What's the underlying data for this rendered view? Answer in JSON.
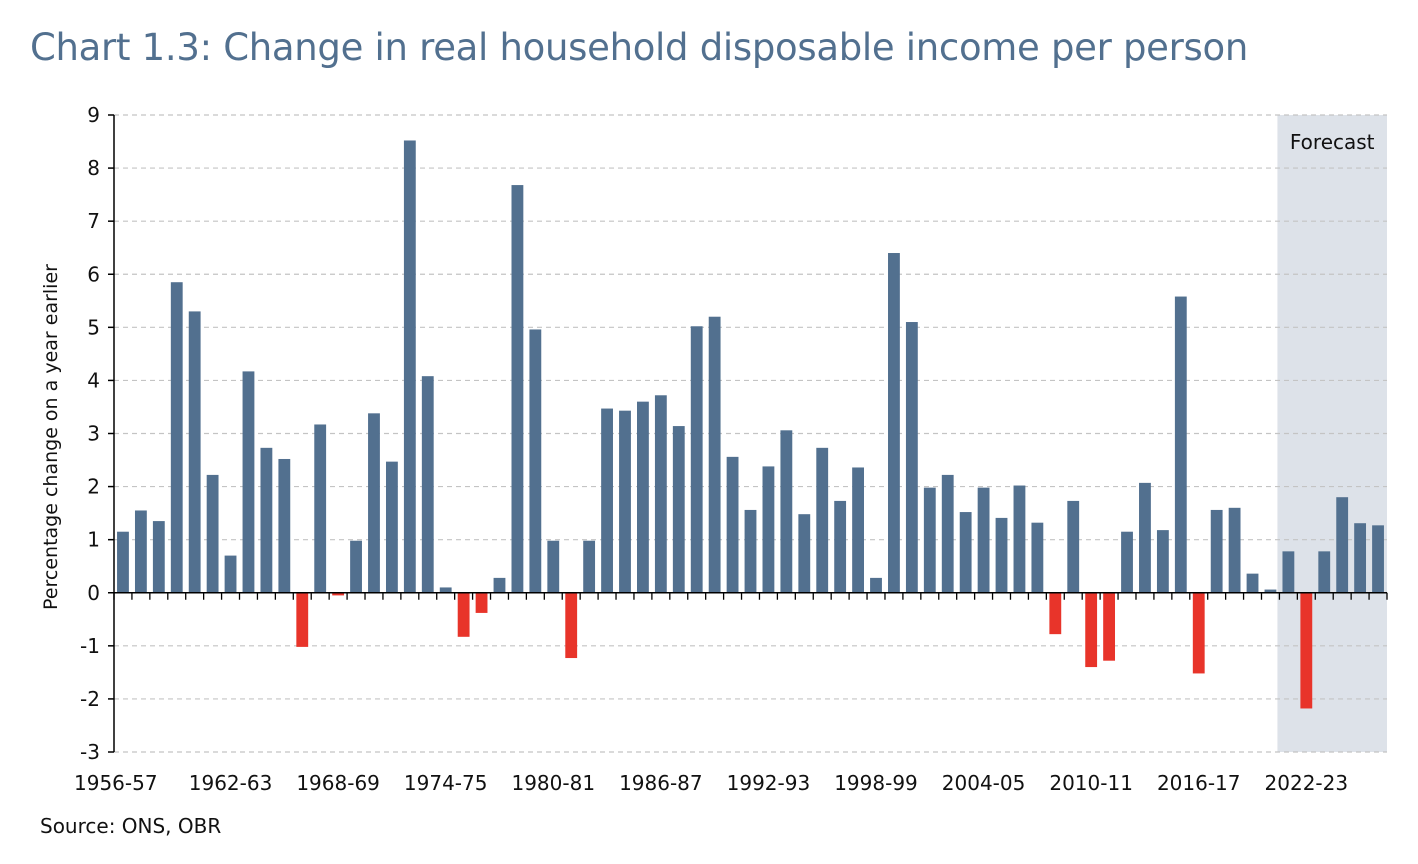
{
  "chart_data": {
    "type": "bar",
    "title": "Chart 1.3: Change in real household disposable income per person",
    "ylabel": "Percentage change on a year earlier",
    "xlabel": "",
    "ylim": [
      -3,
      9
    ],
    "yticks": [
      -3,
      -2,
      -1,
      0,
      1,
      2,
      3,
      4,
      5,
      6,
      7,
      8,
      9
    ],
    "grid": "horizontal dashed",
    "x_tick_labels": [
      "1956-57",
      "1962-63",
      "1968-69",
      "1974-75",
      "1980-81",
      "1986-87",
      "1992-93",
      "1998-99",
      "2004-05",
      "2010-11",
      "2016-17",
      "2022-23"
    ],
    "first_year": 1956,
    "forecast_label": "Forecast",
    "forecast_from": "2021-22",
    "colors": {
      "positive": "#52708f",
      "negative": "#e8342a",
      "forecast_shade": "#dde2e9",
      "title": "#52708f"
    },
    "values": [
      1.15,
      1.55,
      1.35,
      5.85,
      5.3,
      2.22,
      0.7,
      4.17,
      2.73,
      2.52,
      -1.02,
      3.17,
      -0.05,
      0.98,
      3.38,
      2.47,
      8.52,
      4.08,
      0.1,
      -0.83,
      -0.38,
      0.28,
      7.68,
      4.96,
      0.98,
      -1.23,
      0.98,
      3.47,
      3.43,
      3.6,
      3.72,
      3.14,
      5.02,
      5.2,
      2.56,
      1.56,
      2.38,
      3.06,
      1.48,
      2.73,
      1.73,
      2.36,
      0.28,
      6.4,
      5.1,
      1.98,
      2.22,
      1.52,
      1.98,
      1.41,
      2.02,
      1.32,
      -0.78,
      1.73,
      -1.4,
      -1.28,
      1.15,
      2.07,
      1.18,
      5.58,
      -1.52,
      1.56,
      1.6,
      0.36,
      0.06,
      0.78,
      -2.18,
      0.78,
      1.8,
      1.31,
      1.27
    ]
  },
  "source": "Source: ONS, OBR"
}
